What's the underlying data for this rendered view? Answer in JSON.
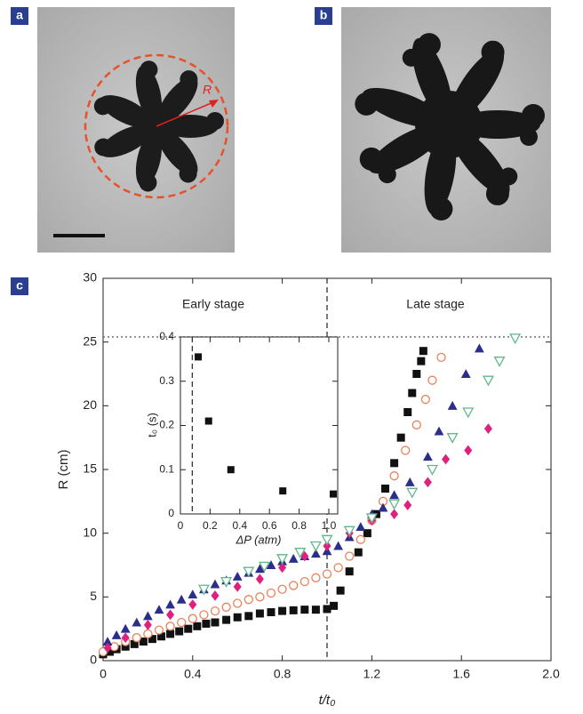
{
  "panels": {
    "a": "a",
    "b": "b",
    "c": "c"
  },
  "photo_annotation": "R",
  "chart_data": [
    {
      "type": "scatter",
      "xlabel": "t/t₀",
      "ylabel": "R (cm)",
      "xlim": [
        0,
        2
      ],
      "ylim": [
        0,
        30
      ],
      "xticks": [
        0,
        0.4,
        0.8,
        1.2,
        1.6,
        {
          "value": 2,
          "label": "2.0"
        }
      ],
      "yticks": [
        0,
        5,
        10,
        15,
        20,
        25,
        30
      ],
      "vlines": [
        1
      ],
      "hlines": [
        25.4
      ],
      "annotations": [
        "Early stage",
        "Late stage"
      ],
      "series": [
        {
          "marker": "square",
          "color": "#111111",
          "x": [
            0,
            0.03,
            0.06,
            0.1,
            0.14,
            0.18,
            0.22,
            0.26,
            0.3,
            0.34,
            0.38,
            0.42,
            0.46,
            0.5,
            0.55,
            0.6,
            0.65,
            0.7,
            0.75,
            0.8,
            0.85,
            0.9,
            0.95,
            1.0,
            1.03,
            1.06,
            1.1,
            1.14,
            1.18,
            1.22,
            1.26,
            1.3,
            1.33,
            1.36,
            1.38,
            1.4,
            1.42,
            1.43
          ],
          "values": [
            0.5,
            0.7,
            0.9,
            1.1,
            1.3,
            1.5,
            1.7,
            1.9,
            2.1,
            2.3,
            2.5,
            2.7,
            2.9,
            3.0,
            3.2,
            3.4,
            3.5,
            3.7,
            3.8,
            3.9,
            3.95,
            4.0,
            4.0,
            4.05,
            4.3,
            5.5,
            7,
            8.5,
            10,
            11.5,
            13.5,
            15.5,
            17.5,
            19.5,
            21,
            22.5,
            23.5,
            24.3
          ]
        },
        {
          "marker": "circle-open",
          "color": "#e8825a",
          "x": [
            0,
            0.05,
            0.1,
            0.15,
            0.2,
            0.25,
            0.3,
            0.35,
            0.4,
            0.45,
            0.5,
            0.55,
            0.6,
            0.65,
            0.7,
            0.75,
            0.8,
            0.85,
            0.9,
            0.95,
            1.0,
            1.05,
            1.1,
            1.15,
            1.2,
            1.25,
            1.3,
            1.35,
            1.4,
            1.44,
            1.47,
            1.51
          ],
          "values": [
            0.7,
            1.1,
            1.5,
            1.8,
            2.1,
            2.4,
            2.7,
            3.0,
            3.3,
            3.6,
            3.9,
            4.2,
            4.5,
            4.8,
            5.0,
            5.3,
            5.6,
            5.9,
            6.2,
            6.5,
            6.8,
            7.3,
            8.2,
            9.5,
            11,
            12.5,
            14.5,
            16.5,
            18.5,
            20.5,
            22,
            23.8
          ]
        },
        {
          "marker": "triangle",
          "color": "#2c2f8a",
          "x": [
            0.02,
            0.06,
            0.1,
            0.15,
            0.2,
            0.25,
            0.3,
            0.35,
            0.4,
            0.45,
            0.5,
            0.55,
            0.6,
            0.65,
            0.7,
            0.75,
            0.8,
            0.85,
            0.9,
            0.95,
            1.0,
            1.05,
            1.1,
            1.15,
            1.2,
            1.25,
            1.3,
            1.37,
            1.45,
            1.5,
            1.56,
            1.62,
            1.68
          ],
          "values": [
            1.5,
            2,
            2.5,
            3,
            3.5,
            4,
            4.4,
            4.8,
            5.2,
            5.6,
            6,
            6.3,
            6.6,
            6.9,
            7.2,
            7.5,
            7.8,
            8,
            8.2,
            8.4,
            8.6,
            9,
            9.7,
            10.5,
            11.5,
            12,
            13,
            14,
            16,
            18,
            20,
            22.5,
            24.5
          ]
        },
        {
          "marker": "diamond",
          "color": "#e0207f",
          "x": [
            0.02,
            0.1,
            0.2,
            0.3,
            0.4,
            0.5,
            0.6,
            0.7,
            0.8,
            0.9,
            1.0,
            1.1,
            1.2,
            1.3,
            1.36,
            1.45,
            1.53,
            1.63,
            1.72
          ],
          "values": [
            1,
            1.8,
            2.8,
            3.6,
            4.4,
            5.1,
            5.8,
            6.4,
            7.3,
            8.2,
            9,
            10,
            11,
            11.5,
            12.2,
            14,
            15.8,
            16.5,
            18.2
          ]
        },
        {
          "marker": "triangle-down-open",
          "color": "#5fb88a",
          "x": [
            0.45,
            0.55,
            0.65,
            0.72,
            0.8,
            0.88,
            0.95,
            1.0,
            1.1,
            1.2,
            1.3,
            1.38,
            1.47,
            1.56,
            1.63,
            1.72,
            1.77,
            1.84
          ],
          "values": [
            5.6,
            6.2,
            7,
            7.4,
            8,
            8.5,
            9,
            9.5,
            10.2,
            11.2,
            12.3,
            13.2,
            15,
            17.5,
            19.5,
            22,
            23.5,
            25.3
          ]
        }
      ]
    },
    {
      "type": "scatter",
      "xlabel": "ΔP (atm)",
      "ylabel": "t₀ (s)",
      "xlim": [
        0,
        1.06
      ],
      "ylim": [
        0,
        0.4
      ],
      "xticks": [
        0,
        0.2,
        0.4,
        0.6,
        0.8,
        {
          "value": 1,
          "label": "1.0"
        }
      ],
      "yticks": [
        0,
        0.1,
        0.2,
        0.3,
        0.4
      ],
      "vlines": [
        0.08
      ],
      "series": [
        {
          "marker": "square",
          "color": "#111111",
          "x": [
            0.12,
            0.19,
            0.34,
            0.69,
            1.03
          ],
          "values": [
            0.355,
            0.21,
            0.1,
            0.052,
            0.045
          ]
        }
      ]
    }
  ]
}
